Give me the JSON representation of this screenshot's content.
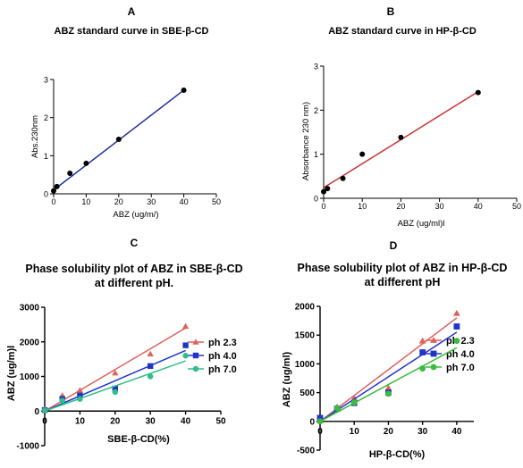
{
  "chart_data": [
    {
      "panel": "A",
      "type": "scatter",
      "title": "ABZ standard curve in SBE-β-CD",
      "xlabel": "ABZ (ug/m/)",
      "ylabel": "Abs.230nm",
      "xlim": [
        0,
        50
      ],
      "ylim": [
        0,
        3
      ],
      "xticks": [
        0,
        10,
        20,
        30,
        40,
        50
      ],
      "yticks": [
        0,
        1,
        2,
        3
      ],
      "grid": false,
      "series": [
        {
          "x": [
            0,
            1,
            5,
            10,
            20,
            40
          ],
          "y": [
            0.08,
            0.19,
            0.54,
            0.8,
            1.43,
            2.72
          ],
          "fit": [
            [
              0,
              0.1
            ],
            [
              40,
              2.72
            ]
          ],
          "color": "#000000",
          "fit_color": "#1f2fa3",
          "marker": "circle"
        }
      ]
    },
    {
      "panel": "B",
      "type": "scatter",
      "title": "ABZ standard curve in HP-β-CD",
      "xlabel": "ABZ (ug/ml)l",
      "ylabel": "Absorbance 230 nm)",
      "xlim": [
        0,
        50
      ],
      "ylim": [
        0,
        3
      ],
      "xticks": [
        0,
        10,
        20,
        30,
        40,
        50
      ],
      "yticks": [
        0,
        1,
        2,
        3
      ],
      "grid": false,
      "series": [
        {
          "x": [
            0,
            1,
            5,
            10,
            20,
            40
          ],
          "y": [
            0.15,
            0.22,
            0.45,
            1.0,
            1.38,
            2.4
          ],
          "fit": [
            [
              0,
              0.24
            ],
            [
              40,
              2.42
            ]
          ],
          "color": "#000000",
          "fit_color": "#cc3333",
          "marker": "circle"
        }
      ]
    },
    {
      "panel": "C",
      "type": "scatter",
      "title": "Phase solubility plot of ABZ in SBE-β-CD",
      "subtitle": "at different pH.",
      "xlabel": "SBE-β-CD(%)",
      "ylabel": "ABZ (ug/m)l",
      "xlim": [
        0,
        50
      ],
      "ylim": [
        -1000,
        3000
      ],
      "xticks": [
        0,
        10,
        20,
        30,
        40,
        50
      ],
      "yticks": [
        -1000,
        0,
        1000,
        2000,
        3000
      ],
      "grid": false,
      "legend": "right",
      "series": [
        {
          "name": "ph 2.3",
          "marker": "triangle",
          "color": "#e0605a",
          "x": [
            0,
            5,
            10,
            20,
            30,
            40
          ],
          "y": [
            50,
            450,
            600,
            1100,
            1650,
            2450
          ],
          "fit": [
            [
              0,
              0
            ],
            [
              40,
              2400
            ]
          ]
        },
        {
          "name": "ph 4.0",
          "marker": "square",
          "color": "#2233cc",
          "x": [
            0,
            5,
            10,
            20,
            30,
            40
          ],
          "y": [
            30,
            350,
            450,
            650,
            1300,
            1900
          ],
          "fit": [
            [
              0,
              0
            ],
            [
              40,
              1750
            ]
          ]
        },
        {
          "name": "ph 7.0",
          "marker": "circle",
          "color": "#2fbf8a",
          "x": [
            0,
            5,
            10,
            20,
            30,
            40
          ],
          "y": [
            20,
            300,
            350,
            550,
            1000,
            1600
          ],
          "fit": [
            [
              0,
              0
            ],
            [
              40,
              1450
            ]
          ]
        }
      ]
    },
    {
      "panel": "D",
      "type": "scatter",
      "title": "Phase solubility plot of ABZ in HP-β-CD",
      "subtitle": "at different pH",
      "xlabel": "HP-β-CD(%)",
      "ylabel": "ABZ (ug/ml)",
      "xlim": [
        0,
        45
      ],
      "ylim": [
        -500,
        2000
      ],
      "xticks": [
        0,
        10,
        20,
        30,
        40
      ],
      "yticks": [
        -500,
        0,
        500,
        1000,
        1500,
        2000
      ],
      "grid": false,
      "legend": "right",
      "series": [
        {
          "name": "ph 2.3",
          "marker": "triangle",
          "color": "#e0605a",
          "x": [
            0,
            5,
            10,
            20,
            30,
            40
          ],
          "y": [
            20,
            250,
            400,
            580,
            1400,
            1880
          ],
          "fit": [
            [
              0,
              0
            ],
            [
              40,
              1800
            ]
          ]
        },
        {
          "name": "ph 4.0",
          "marker": "square",
          "color": "#2233cc",
          "x": [
            0,
            5,
            10,
            20,
            30,
            40
          ],
          "y": [
            60,
            220,
            320,
            500,
            1200,
            1650
          ],
          "fit": [
            [
              0,
              0
            ],
            [
              40,
              1550
            ]
          ]
        },
        {
          "name": "ph 7.0",
          "marker": "circle",
          "color": "#3dbb3d",
          "x": [
            0,
            5,
            10,
            20,
            30,
            40
          ],
          "y": [
            0,
            230,
            330,
            480,
            920,
            1400
          ],
          "fit": [
            [
              0,
              0
            ],
            [
              40,
              1280
            ]
          ]
        }
      ]
    }
  ]
}
